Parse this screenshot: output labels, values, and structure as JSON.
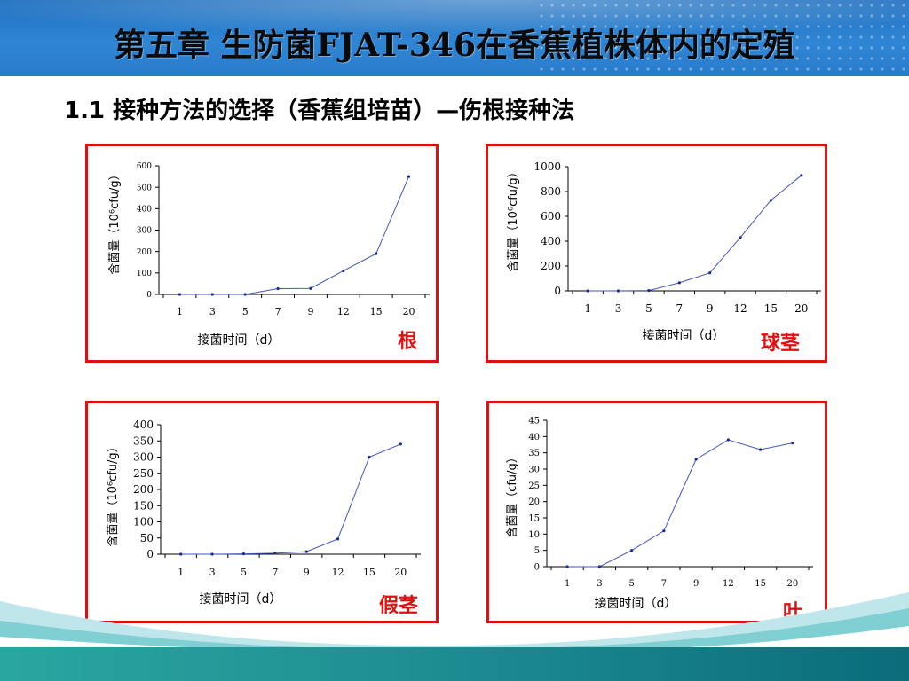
{
  "header": {
    "title": "第五章  生防菌FJAT-346在香蕉植株体内的定殖"
  },
  "subtitle": "1.1  接种方法的选择（香蕉组培苗）—伤根接种法",
  "colors": {
    "frame": "#e01010",
    "line": "#4455bb",
    "header": "#2a7ccb",
    "footer": "#1d8c92"
  },
  "chart_data": [
    {
      "type": "line",
      "tag": "根",
      "categories": [
        "1",
        "3",
        "5",
        "7",
        "9",
        "12",
        "15",
        "20"
      ],
      "values": [
        0,
        0,
        0,
        27,
        28,
        110,
        190,
        550
      ],
      "ylim": [
        0,
        600
      ],
      "yticks": [
        "0",
        "100",
        "200",
        "300",
        "400",
        "500",
        "600"
      ],
      "xlabel": "接菌时间（d）",
      "ylabel": "含菌量（10⁶cfu/g）"
    },
    {
      "type": "line",
      "tag": "球茎",
      "categories": [
        "1",
        "3",
        "5",
        "7",
        "9",
        "12",
        "15",
        "20"
      ],
      "values": [
        0,
        0,
        3,
        65,
        145,
        430,
        730,
        930
      ],
      "ylim": [
        0,
        1000
      ],
      "yticks": [
        "0",
        "200",
        "400",
        "600",
        "800",
        "1000"
      ],
      "xlabel": "接菌时间（d）",
      "ylabel": "含菌量（10⁶cfu/g）"
    },
    {
      "type": "line",
      "tag": "假茎",
      "categories": [
        "1",
        "3",
        "5",
        "7",
        "9",
        "12",
        "15",
        "20"
      ],
      "values": [
        0,
        0,
        1,
        3,
        8,
        47,
        300,
        340
      ],
      "ylim": [
        0,
        400
      ],
      "yticks": [
        "0",
        "50",
        "100",
        "150",
        "200",
        "250",
        "300",
        "350",
        "400"
      ],
      "xlabel": "接菌时间（d）",
      "ylabel": "含菌量（10⁶cfu/g）"
    },
    {
      "type": "line",
      "tag": "叶",
      "categories": [
        "1",
        "3",
        "5",
        "7",
        "9",
        "12",
        "15",
        "20"
      ],
      "values": [
        0,
        0,
        5,
        11,
        33,
        39,
        36,
        38
      ],
      "ylim": [
        0,
        45
      ],
      "yticks": [
        "0",
        "5",
        "10",
        "15",
        "20",
        "25",
        "30",
        "35",
        "40",
        "45"
      ],
      "xlabel": "接菌时间（d）",
      "ylabel": "含菌量（cfu/g）"
    }
  ]
}
